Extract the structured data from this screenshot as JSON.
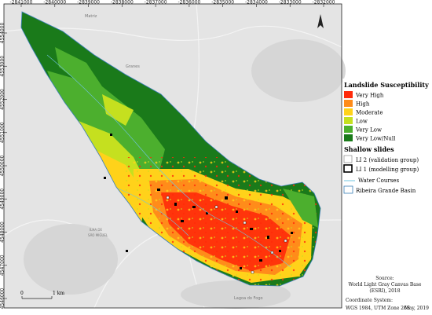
{
  "map": {
    "x_ticks": [
      "-2841000",
      "-2840000",
      "-2839000",
      "-2838000",
      "-2837000",
      "-2836000",
      "-2835000",
      "-2834000",
      "-2833000",
      "-2832000"
    ],
    "y_ticks": [
      "4554000",
      "4553000",
      "4552000",
      "4551000",
      "4550000",
      "4549000",
      "4548000",
      "4547000",
      "4546000"
    ],
    "place_labels": {
      "matriz": "Matriz",
      "granes": "Granes",
      "ilha": "ILHA DE",
      "sao_miguel": "SÃO MIGUEL",
      "lagoa": "Lagoa do Fogo"
    },
    "scale_bar": {
      "start": "0",
      "end": "1 km"
    }
  },
  "legend": {
    "susceptibility_title": "Landslide Susceptibility",
    "classes": [
      {
        "label": "Very High",
        "color": "#ff2a0a"
      },
      {
        "label": "High",
        "color": "#ff8c1a"
      },
      {
        "label": "Moderate",
        "color": "#ffd21a"
      },
      {
        "label": "Low",
        "color": "#c5e01f"
      },
      {
        "label": "Very Low",
        "color": "#4caf2e"
      },
      {
        "label": "Very Low/Null",
        "color": "#1a7a1a"
      }
    ],
    "slides_title": "Shallow slides",
    "slides": [
      {
        "label": "LI 2 (validation group)"
      },
      {
        "label": "LI 1 (modelling group)"
      }
    ],
    "water_label": "Water Courses",
    "basin_label": "Ribeira Grande Basin"
  },
  "source": {
    "heading": "Source:",
    "line1": "World Light Gray Canvas Base",
    "line2": "(ESRI), 2018",
    "coord_heading": "Coordinate System:",
    "coord_value": "WGS 1984, UTM Zone 26S",
    "date": "May, 2019"
  }
}
